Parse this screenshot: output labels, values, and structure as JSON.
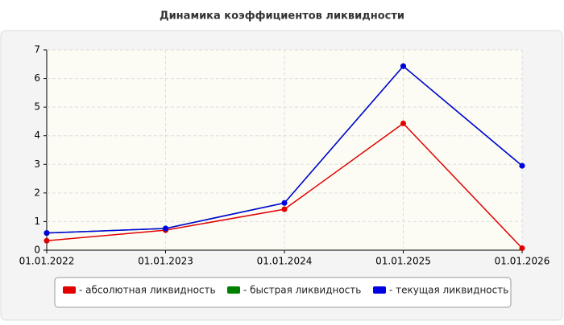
{
  "chart_data": {
    "type": "line",
    "title": "Динамика коэффициентов ликвидности",
    "categories": [
      "01.01.2022",
      "01.01.2023",
      "01.01.2024",
      "01.01.2025",
      "01.01.2026"
    ],
    "series": [
      {
        "name": "- абсолютная ликвидность",
        "color": "#e00000",
        "values": [
          0.33,
          0.7,
          1.43,
          4.43,
          0.07
        ]
      },
      {
        "name": "- быстрая ликвидность",
        "color": "#008000",
        "values": [
          0.6,
          0.76,
          1.65,
          6.43,
          2.95
        ]
      },
      {
        "name": "- текущая ликвидность",
        "color": "#0000e0",
        "values": [
          0.6,
          0.76,
          1.65,
          6.43,
          2.95
        ]
      }
    ],
    "ylim": [
      0,
      7
    ],
    "yticks": [
      0,
      1,
      2,
      3,
      4,
      5,
      6,
      7
    ],
    "grid": true
  }
}
